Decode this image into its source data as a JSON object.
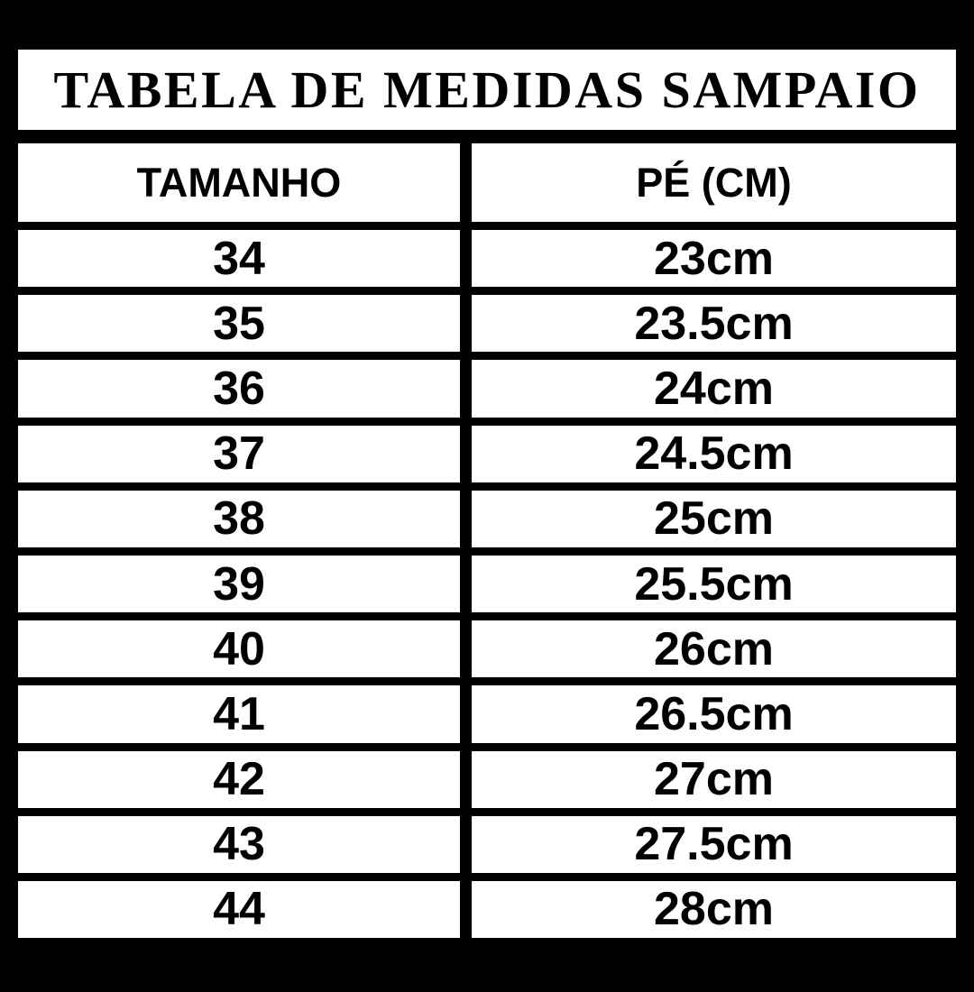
{
  "title": "TABELA DE MEDIDAS SAMPAIO",
  "colors": {
    "background": "#000000",
    "cell_background": "#ffffff",
    "text": "#000000"
  },
  "table": {
    "headers": [
      "TAMANHO",
      "PÉ (CM)"
    ],
    "rows": [
      {
        "size": "34",
        "foot": "23cm"
      },
      {
        "size": "35",
        "foot": "23.5cm"
      },
      {
        "size": "36",
        "foot": "24cm"
      },
      {
        "size": "37",
        "foot": "24.5cm"
      },
      {
        "size": "38",
        "foot": "25cm"
      },
      {
        "size": "39",
        "foot": "25.5cm"
      },
      {
        "size": "40",
        "foot": "26cm"
      },
      {
        "size": "41",
        "foot": "26.5cm"
      },
      {
        "size": "42",
        "foot": "27cm"
      },
      {
        "size": "43",
        "foot": "27.5cm"
      },
      {
        "size": "44",
        "foot": "28cm"
      }
    ]
  },
  "chart_data": {
    "type": "table",
    "title": "TABELA DE MEDIDAS SAMPAIO",
    "columns": [
      "TAMANHO",
      "PÉ (CM)"
    ],
    "rows": [
      [
        "34",
        "23cm"
      ],
      [
        "35",
        "23.5cm"
      ],
      [
        "36",
        "24cm"
      ],
      [
        "37",
        "24.5cm"
      ],
      [
        "38",
        "25cm"
      ],
      [
        "39",
        "25.5cm"
      ],
      [
        "40",
        "26cm"
      ],
      [
        "41",
        "26.5cm"
      ],
      [
        "42",
        "27cm"
      ],
      [
        "43",
        "27.5cm"
      ],
      [
        "44",
        "28cm"
      ]
    ],
    "sizes": [
      34,
      35,
      36,
      37,
      38,
      39,
      40,
      41,
      42,
      43,
      44
    ],
    "foot_cm": [
      23,
      23.5,
      24,
      24.5,
      25,
      25.5,
      26,
      26.5,
      27,
      27.5,
      28
    ]
  }
}
